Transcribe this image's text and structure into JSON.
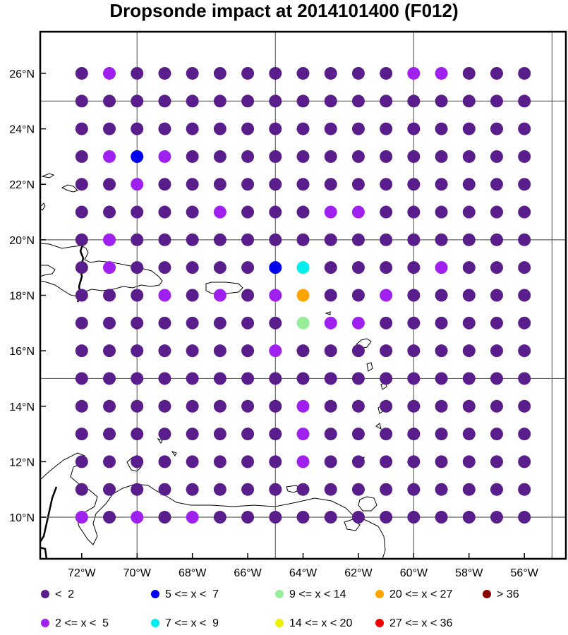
{
  "title": "Dropsonde impact at 2014101400 (F012)",
  "map": {
    "lon_ticks": [
      "72°W",
      "70°W",
      "68°W",
      "66°W",
      "64°W",
      "62°W",
      "60°W",
      "58°W",
      "56°W"
    ],
    "lat_ticks": [
      "26°N",
      "24°N",
      "22°N",
      "20°N",
      "18°N",
      "16°N",
      "14°N",
      "12°N",
      "10°N"
    ]
  },
  "legend": [
    {
      "label": "<  2",
      "color": "#5a1e8c"
    },
    {
      "label": "5 <= x <  7",
      "color": "#0000ee"
    },
    {
      "label": "9 <= x < 14",
      "color": "#98ee98"
    },
    {
      "label": "20 <= x < 27",
      "color": "#ffa500"
    },
    {
      "label": "> 36",
      "color": "#8b0000"
    },
    {
      "label": "2 <= x <  5",
      "color": "#a020f0"
    },
    {
      "label": "7 <= x <  9",
      "color": "#00eeee"
    },
    {
      "label": "14 <= x < 20",
      "color": "#eeee00"
    },
    {
      "label": "27 <= x < 36",
      "color": "#ee0000"
    }
  ],
  "chart_data": {
    "type": "scatter",
    "title": "Dropsonde impact at 2014101400 (F012)",
    "lon_range": [
      -73.5,
      -54.5
    ],
    "lat_range": [
      8.5,
      27.5
    ],
    "lons": [
      -72,
      -71,
      -70,
      -69,
      -68,
      -67,
      -66,
      -65,
      -64,
      -63,
      -62,
      -61,
      -60,
      -59,
      -58,
      -57,
      -56
    ],
    "lats": [
      26,
      25,
      24,
      23,
      22,
      21,
      20,
      19,
      18,
      17,
      16,
      15,
      14,
      13,
      12,
      11,
      10
    ],
    "categories": [
      "< 2",
      "2 <= x < 5",
      "5 <= x < 7",
      "7 <= x < 9",
      "9 <= x < 14",
      "14 <= x < 20",
      "20 <= x < 27",
      "27 <= x < 36",
      "> 36"
    ],
    "default_category": "< 2",
    "points": [
      {
        "lon": -71,
        "lat": 26,
        "category": "2 <= x < 5"
      },
      {
        "lon": -60,
        "lat": 26,
        "category": "2 <= x < 5"
      },
      {
        "lon": -59,
        "lat": 26,
        "category": "2 <= x < 5"
      },
      {
        "lon": -71,
        "lat": 23,
        "category": "2 <= x < 5"
      },
      {
        "lon": -70,
        "lat": 23,
        "category": "5 <= x < 7"
      },
      {
        "lon": -69,
        "lat": 23,
        "category": "2 <= x < 5"
      },
      {
        "lon": -70,
        "lat": 22,
        "category": "2 <= x < 5"
      },
      {
        "lon": -67,
        "lat": 21,
        "category": "2 <= x < 5"
      },
      {
        "lon": -63,
        "lat": 21,
        "category": "2 <= x < 5"
      },
      {
        "lon": -62,
        "lat": 21,
        "category": "2 <= x < 5"
      },
      {
        "lon": -71,
        "lat": 20,
        "category": "2 <= x < 5"
      },
      {
        "lon": -71,
        "lat": 19,
        "category": "2 <= x < 5"
      },
      {
        "lon": -65,
        "lat": 19,
        "category": "5 <= x < 7"
      },
      {
        "lon": -64,
        "lat": 19,
        "category": "7 <= x < 9"
      },
      {
        "lon": -59,
        "lat": 19,
        "category": "2 <= x < 5"
      },
      {
        "lon": -69,
        "lat": 18,
        "category": "2 <= x < 5"
      },
      {
        "lon": -67,
        "lat": 18,
        "category": "2 <= x < 5"
      },
      {
        "lon": -65,
        "lat": 18,
        "category": "2 <= x < 5"
      },
      {
        "lon": -64,
        "lat": 18,
        "category": "20 <= x < 27"
      },
      {
        "lon": -61,
        "lat": 18,
        "category": "2 <= x < 5"
      },
      {
        "lon": -64,
        "lat": 17,
        "category": "9 <= x < 14"
      },
      {
        "lon": -63,
        "lat": 17,
        "category": "2 <= x < 5"
      },
      {
        "lon": -62,
        "lat": 17,
        "category": "2 <= x < 5"
      },
      {
        "lon": -65,
        "lat": 16,
        "category": "2 <= x < 5"
      },
      {
        "lon": -64,
        "lat": 14,
        "category": "2 <= x < 5"
      },
      {
        "lon": -64,
        "lat": 13,
        "category": "2 <= x < 5"
      },
      {
        "lon": -64,
        "lat": 12,
        "category": "2 <= x < 5"
      },
      {
        "lon": -72,
        "lat": 10,
        "category": "2 <= x < 5"
      },
      {
        "lon": -70,
        "lat": 10,
        "category": "2 <= x < 5"
      },
      {
        "lon": -68,
        "lat": 10,
        "category": "2 <= x < 5"
      }
    ],
    "category_colors": {
      "< 2": "#5a1e8c",
      "2 <= x < 5": "#a020f0",
      "5 <= x < 7": "#0000ee",
      "7 <= x < 9": "#00eeee",
      "9 <= x < 14": "#98ee98",
      "14 <= x < 20": "#eeee00",
      "20 <= x < 27": "#ffa500",
      "27 <= x < 36": "#ee0000",
      "> 36": "#8b0000"
    },
    "gridlines_lon": [
      -70,
      -65,
      -60,
      -55
    ],
    "gridlines_lat": [
      25,
      20,
      15,
      10
    ]
  }
}
